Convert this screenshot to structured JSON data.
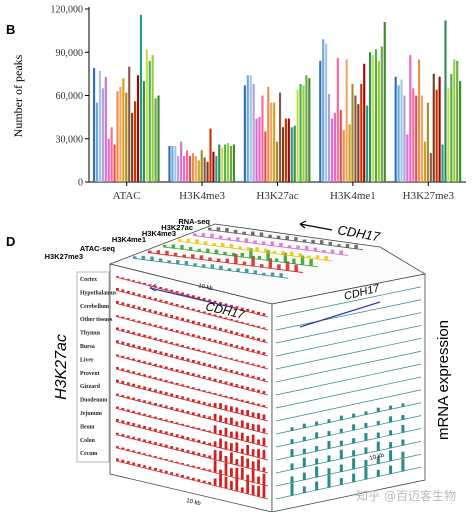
{
  "panel_b": {
    "letter": "B",
    "chart_data": {
      "type": "bar",
      "ylabel": "Number of peaks",
      "xlabel": "",
      "ylim": [
        0,
        120000
      ],
      "yticks": [
        "0",
        "30,000",
        "60,000",
        "90,000",
        "120,000"
      ],
      "ytick_values": [
        0,
        30000,
        60000,
        90000,
        120000
      ],
      "categories": [
        "ATAC",
        "H3K4me3",
        "H3K27ac",
        "H3K4me1",
        "H3K27me3"
      ],
      "grid": false,
      "values": [
        [
          79000,
          55000,
          77000,
          65000,
          73000,
          30000,
          38000,
          26000,
          63000,
          66000,
          72000,
          62000,
          80000,
          48000,
          56000,
          74000,
          116000,
          70000,
          92000,
          84000,
          88000,
          58000,
          60000
        ],
        [
          25000,
          25000,
          25000,
          18000,
          28000,
          18000,
          22000,
          18000,
          20000,
          18000,
          15000,
          22000,
          17000,
          14000,
          37000,
          21000,
          18000,
          26000,
          24000,
          26000,
          27000,
          25000,
          26000
        ],
        [
          67000,
          74000,
          74000,
          68000,
          44000,
          45000,
          60000,
          35000,
          66000,
          55000,
          55000,
          28000,
          62000,
          38000,
          44000,
          44000,
          38000,
          39000,
          64000,
          68000,
          67000,
          74000,
          72000
        ],
        [
          84000,
          99000,
          96000,
          61000,
          44000,
          48000,
          86000,
          50000,
          36000,
          85000,
          40000,
          68000,
          60000,
          54000,
          68000,
          82000,
          53000,
          90000,
          88000,
          92000,
          84000,
          94000,
          111000
        ],
        [
          73000,
          67000,
          71000,
          60000,
          33000,
          88000,
          65000,
          60000,
          85000,
          60000,
          28000,
          55000,
          20000,
          75000,
          64000,
          73000,
          26000,
          112000,
          65000,
          75000,
          85000,
          84000,
          70000
        ]
      ],
      "bar_colors": [
        "#2f6fb5",
        "#6fa8dc",
        "#9cc6ea",
        "#b39ddb",
        "#d56fd0",
        "#e667c8",
        "#ff6699",
        "#e05050",
        "#f08a4b",
        "#f4a460",
        "#d4a017",
        "#a68b2c",
        "#8c564b",
        "#7a3f1c",
        "#cc3300",
        "#aa0000",
        "#1fa187",
        "#2e8b57",
        "#c7e04a",
        "#4caf50",
        "#9acd32",
        "#6aa84f",
        "#3d8c2a"
      ]
    }
  },
  "panel_d": {
    "letter": "D",
    "left_axis_label": "H3K27ac",
    "right_axis_label": "mRNA expression",
    "gene_top": "CDH17",
    "gene_front": "CDH17",
    "gene_right": "CDH17",
    "top_tracks": [
      "RNA-seq",
      "H3K27ac",
      "H3K4me3",
      "H3K4me1",
      "ATAC-seq",
      "H3K27me3"
    ],
    "tissues": [
      "Cortex",
      "Hypothalamus",
      "Cerebellum",
      "Other tissues",
      "Thymus",
      "Bursa",
      "Liver",
      "Provent",
      "Gizzard",
      "Duodenum",
      "Jejunum",
      "Ileum",
      "Colon",
      "Cecum"
    ],
    "scale_front": "10 kb",
    "scale_right": "10 kb",
    "scale_top": "10 kb",
    "colors": {
      "h3k27ac": "#d32020",
      "mrna": "#2a8a8a",
      "gene": "#3a3aa0"
    }
  },
  "watermark": "知乎 @百迈客生物"
}
